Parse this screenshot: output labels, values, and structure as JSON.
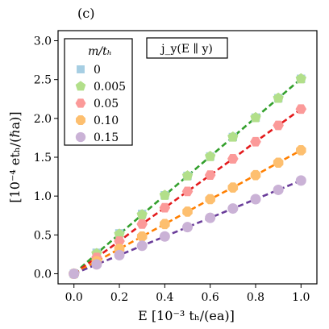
{
  "chart_data": {
    "type": "scatter",
    "panel_label": "(c)",
    "annotation": "j_y(E ∥ y)",
    "xlabel": "E [10⁻³ tₕ/(ea)]",
    "ylabel": "[10⁻⁴ etₕ/(ℏa)]",
    "xlim": [
      -0.07,
      1.07
    ],
    "ylim": [
      -0.13,
      3.13
    ],
    "xticks": [
      0.0,
      0.2,
      0.4,
      0.6,
      0.8,
      1.0
    ],
    "xtick_labels": [
      "0.0",
      "0.2",
      "0.4",
      "0.6",
      "0.8",
      "1.0"
    ],
    "yticks": [
      0.0,
      0.5,
      1.0,
      1.5,
      2.0,
      2.5,
      3.0
    ],
    "ytick_labels": [
      "0.0",
      "0.5",
      "1.0",
      "1.5",
      "2.0",
      "2.5",
      "3.0"
    ],
    "grid": false,
    "legend": {
      "title": "m/tₕ",
      "placement": "top-left"
    },
    "x": [
      0.0,
      0.1,
      0.2,
      0.3,
      0.4,
      0.5,
      0.6,
      0.7,
      0.8,
      0.9,
      1.0
    ],
    "series": [
      {
        "name": "0",
        "marker": "square",
        "color": "#a6cee3",
        "values": [
          0.0,
          0.27,
          0.52,
          0.77,
          1.01,
          1.26,
          1.51,
          1.76,
          2.01,
          2.26,
          2.51
        ]
      },
      {
        "name": "0.005",
        "marker": "pentagon",
        "color": "#b2df8a",
        "line_color": "#33a02c",
        "values": [
          0.0,
          0.26,
          0.51,
          0.76,
          1.01,
          1.26,
          1.51,
          1.76,
          2.01,
          2.26,
          2.51
        ]
      },
      {
        "name": "0.05",
        "marker": "hexagon",
        "color": "#fb9a99",
        "line_color": "#e31a1c",
        "values": [
          0.0,
          0.21,
          0.42,
          0.64,
          0.85,
          1.06,
          1.27,
          1.48,
          1.7,
          1.91,
          2.12
        ]
      },
      {
        "name": "0.10",
        "marker": "octagon",
        "color": "#fdbf6f",
        "line_color": "#ff7f00",
        "values": [
          0.0,
          0.16,
          0.32,
          0.48,
          0.64,
          0.8,
          0.96,
          1.11,
          1.27,
          1.43,
          1.59
        ]
      },
      {
        "name": "0.15",
        "marker": "circle",
        "color": "#cab2d6",
        "line_color": "#6a3d9a",
        "values": [
          0.0,
          0.12,
          0.24,
          0.36,
          0.48,
          0.6,
          0.72,
          0.84,
          0.96,
          1.08,
          1.2
        ]
      }
    ]
  }
}
